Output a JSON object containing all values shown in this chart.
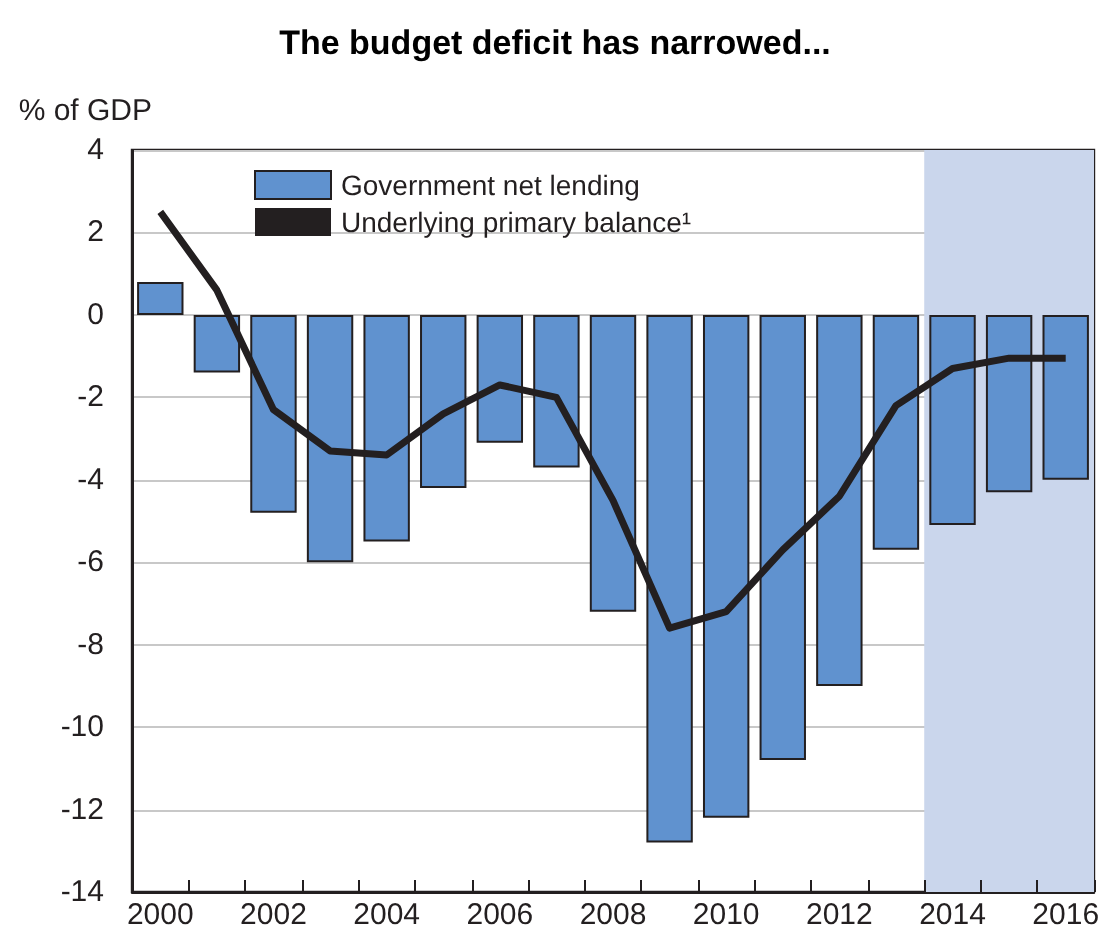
{
  "chart_data": {
    "type": "bar",
    "title": "The budget deficit has narrowed...",
    "ylabel": "% of GDP",
    "categories": [
      "2000",
      null,
      "2002",
      null,
      "2004",
      null,
      "2006",
      null,
      "2008",
      null,
      "2010",
      null,
      "2012",
      null,
      "2014",
      null,
      "2016"
    ],
    "series": [
      {
        "name": "Government net lending",
        "color": "#6092cf",
        "values": [
          0.8,
          -1.4,
          -4.8,
          -6.0,
          -5.5,
          -4.2,
          -3.1,
          -3.7,
          -7.2,
          -12.8,
          -12.2,
          -10.8,
          -9.0,
          -5.7,
          -5.1,
          -4.3,
          -4.0
        ]
      },
      {
        "name": "Underlying primary balance¹",
        "type": "line",
        "color": "#231f20",
        "values": [
          2.5,
          0.6,
          -2.3,
          -3.3,
          -3.4,
          -2.4,
          -1.7,
          -2.0,
          -4.5,
          -7.6,
          -7.2,
          -5.7,
          -4.4,
          -2.2,
          -1.3,
          -1.05,
          -1.05
        ]
      }
    ],
    "ylim": [
      -14,
      4
    ],
    "yticks": [
      -14,
      -12,
      -10,
      -8,
      -6,
      -4,
      -2,
      0,
      2,
      4
    ],
    "bands": [
      {
        "axis": "x",
        "from": "2014",
        "to": "2016",
        "color": "#cad6ec"
      }
    ],
    "grid": "y",
    "legend": "top left",
    "marker": "none",
    "line_style": "solid"
  }
}
